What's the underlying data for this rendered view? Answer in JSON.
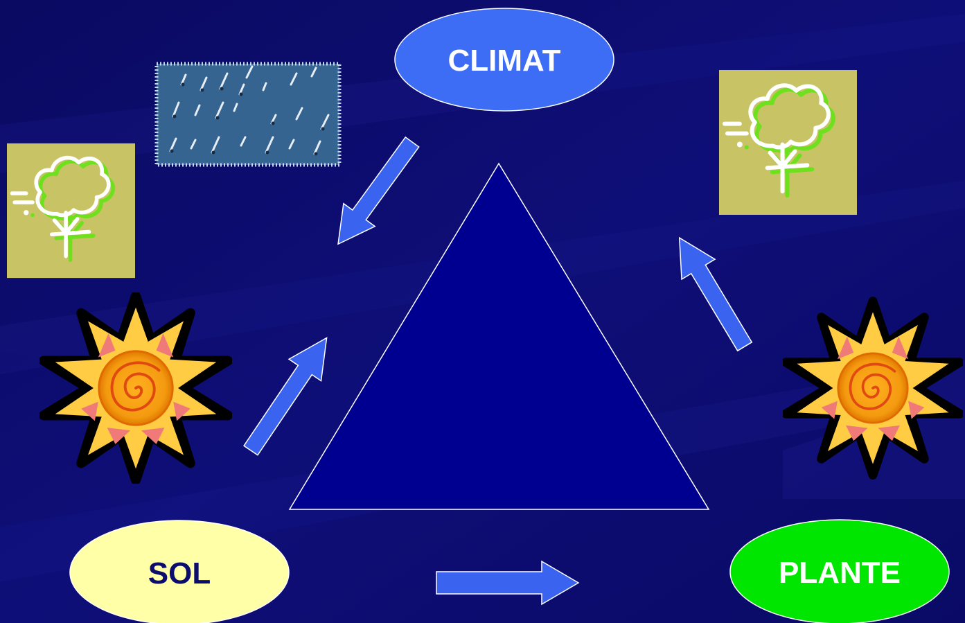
{
  "nodes": {
    "climat": {
      "label": "CLIMAT",
      "fill": "#3d6df5",
      "text_color": "#ffffff"
    },
    "sol": {
      "label": "SOL",
      "fill": "#ffffa8",
      "text_color": "#0c0c6e"
    },
    "plante": {
      "label": "PLANTE",
      "fill": "#00e600",
      "text_color": "#ffffff"
    }
  },
  "colors": {
    "background": "#0c0c6e",
    "triangle": "#000090",
    "arrow": "#3a64f0",
    "card": "#c8c466"
  },
  "icons": [
    "rain-icon",
    "tree-icon",
    "tree-icon",
    "sun-icon",
    "sun-icon"
  ]
}
